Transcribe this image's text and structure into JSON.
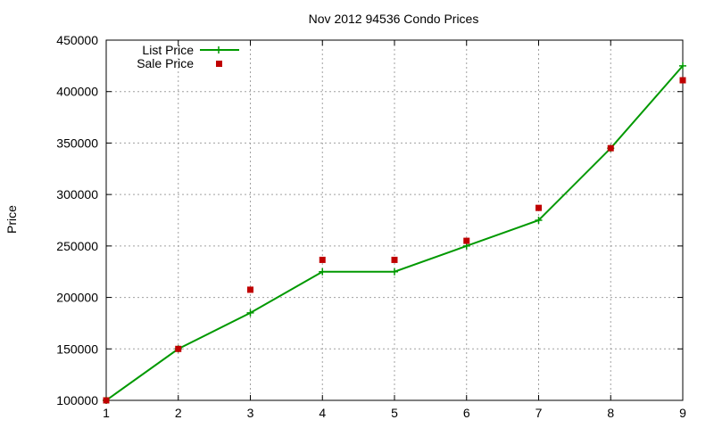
{
  "chart_data": {
    "type": "line",
    "title": "Nov 2012 94536 Condo Prices",
    "xlabel": "",
    "ylabel": "Price",
    "x": [
      1,
      2,
      3,
      4,
      5,
      6,
      7,
      8,
      9
    ],
    "xlim": [
      1,
      9
    ],
    "ylim": [
      100000,
      450000
    ],
    "x_ticks": [
      "1",
      "2",
      "3",
      "4",
      "5",
      "6",
      "7",
      "8",
      "9"
    ],
    "y_ticks": [
      "100000",
      "150000",
      "200000",
      "250000",
      "300000",
      "350000",
      "400000",
      "450000"
    ],
    "grid": true,
    "legend_position": "top-left",
    "series": [
      {
        "name": "List Price",
        "style": "lines+points",
        "marker": "plus",
        "color": "#009900",
        "values": [
          100000,
          150000,
          185000,
          225000,
          225000,
          250000,
          275000,
          345000,
          425000
        ]
      },
      {
        "name": "Sale Price",
        "style": "points",
        "marker": "square",
        "color": "#c00000",
        "values": [
          100000,
          150000,
          207500,
          236500,
          236500,
          255000,
          287000,
          345000,
          411000
        ]
      }
    ]
  }
}
